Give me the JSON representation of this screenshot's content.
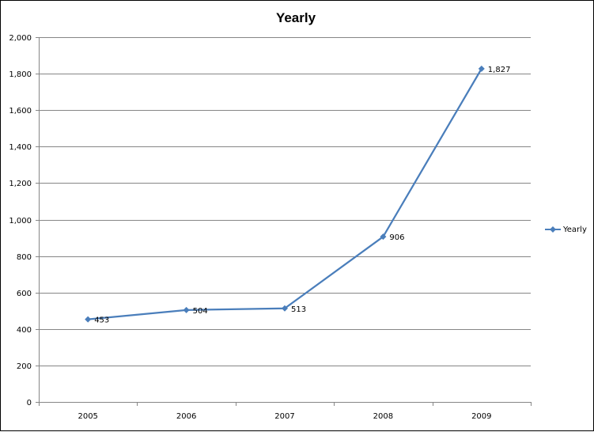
{
  "chart_data": {
    "type": "line",
    "title": "Yearly",
    "categories": [
      "2005",
      "2006",
      "2007",
      "2008",
      "2009"
    ],
    "series": [
      {
        "name": "Yearly",
        "values": [
          453,
          504,
          513,
          906,
          1827
        ],
        "color": "#4a7ebb",
        "marker": "diamond"
      }
    ],
    "data_labels": [
      "453",
      "504",
      "513",
      "906",
      "1,827"
    ],
    "y_ticks": [
      "0",
      "200",
      "400",
      "600",
      "800",
      "1,000",
      "1,200",
      "1,400",
      "1,600",
      "1,800",
      "2,000"
    ],
    "ylim": [
      0,
      2000
    ],
    "y_step": 200,
    "grid": true,
    "gridline_color": "#868686",
    "legend": {
      "position": "right",
      "entries": [
        "Yearly"
      ]
    }
  }
}
